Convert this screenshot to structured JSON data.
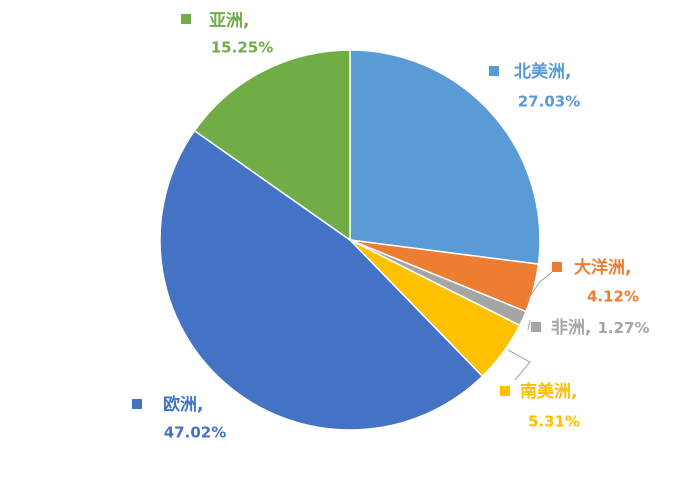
{
  "chart_data": {
    "type": "pie",
    "categories": [
      "北美洲",
      "大洋洲",
      "非洲",
      "南美洲",
      "欧洲",
      "亚洲"
    ],
    "separator": ",",
    "values": [
      27.03,
      4.12,
      1.27,
      5.31,
      47.02,
      15.25
    ],
    "value_labels": [
      "27.03%",
      "4.12%",
      "1.27%",
      "5.31%",
      "47.02%",
      "15.25%"
    ],
    "colors": [
      "#5b9bd5",
      "#ed7d31",
      "#a5a5a5",
      "#ffc000",
      "#4472c4",
      "#70ad47"
    ]
  }
}
